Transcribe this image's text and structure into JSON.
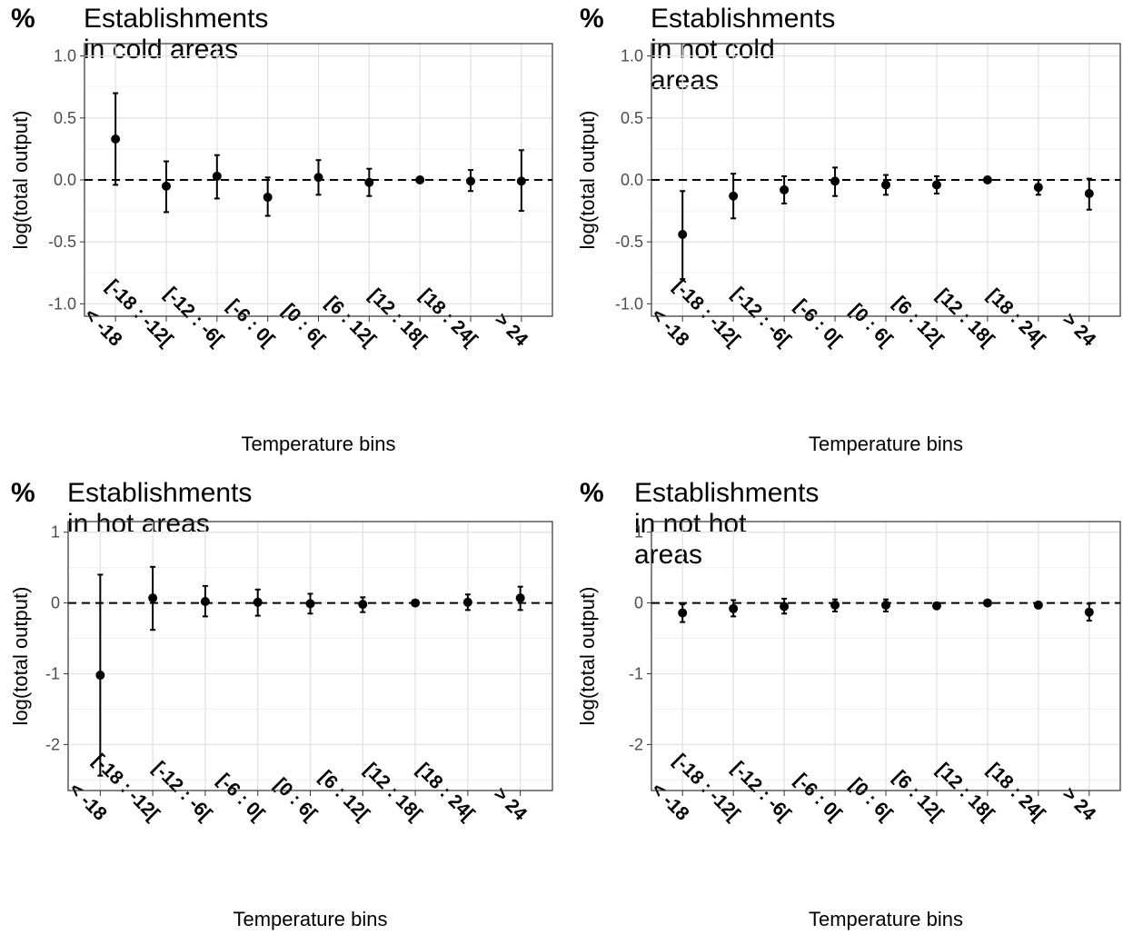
{
  "ylabel": "log(total output)",
  "xlabel": "Temperature bins",
  "chart_data": [
    {
      "type": "scatter",
      "title": "Establishments in cold areas",
      "title_prefix": "%",
      "xlabel": "Temperature bins",
      "ylabel": "log(total output)",
      "categories": [
        "< -18",
        "[-18 : -12[",
        "[-12 : -6[",
        "[-6 : 0[",
        "[0 : 6[",
        "[6 : 12[",
        "[12 : 18[",
        "[18 : 24[",
        "> 24"
      ],
      "values": [
        0.33,
        -0.05,
        0.03,
        -0.14,
        0.02,
        -0.02,
        0.0,
        -0.01,
        -0.01
      ],
      "ci_low": [
        -0.04,
        -0.26,
        -0.15,
        -0.29,
        -0.12,
        -0.13,
        0.0,
        -0.09,
        -0.25
      ],
      "ci_high": [
        0.7,
        0.15,
        0.2,
        0.02,
        0.16,
        0.09,
        0.0,
        0.08,
        0.24
      ],
      "yticks": [
        -1.0,
        -0.5,
        0.0,
        0.5,
        1.0
      ],
      "ytick_labels": [
        "-1.0",
        "-0.5",
        "0.0",
        "0.5",
        "1.0"
      ],
      "ylim": [
        -1.1,
        1.1
      ],
      "reference_line": 0,
      "grid": true
    },
    {
      "type": "scatter",
      "title": "Establishments in not cold areas",
      "title_prefix": "%",
      "xlabel": "Temperature bins",
      "ylabel": "log(total output)",
      "categories": [
        "< -18",
        "[-18 : -12[",
        "[-12 : -6[",
        "[-6 : 0[",
        "[0 : 6[",
        "[6 : 12[",
        "[12 : 18[",
        "[18 : 24[",
        "> 24"
      ],
      "values": [
        -0.44,
        -0.13,
        -0.08,
        -0.01,
        -0.04,
        -0.04,
        0.0,
        -0.06,
        -0.11
      ],
      "ci_low": [
        -0.8,
        -0.31,
        -0.19,
        -0.13,
        -0.12,
        -0.11,
        0.0,
        -0.12,
        -0.24
      ],
      "ci_high": [
        -0.09,
        0.05,
        0.03,
        0.1,
        0.04,
        0.03,
        0.0,
        0.0,
        0.01
      ],
      "yticks": [
        -1.0,
        -0.5,
        0.0,
        0.5,
        1.0
      ],
      "ytick_labels": [
        "-1.0",
        "-0.5",
        "0.0",
        "0.5",
        "1.0"
      ],
      "ylim": [
        -1.1,
        1.1
      ],
      "reference_line": 0,
      "grid": true
    },
    {
      "type": "scatter",
      "title": "Establishments in hot areas",
      "title_prefix": "%",
      "xlabel": "Temperature bins",
      "ylabel": "log(total output)",
      "categories": [
        "< -18",
        "[-18 : -12[",
        "[-12 : -6[",
        "[-6 : 0[",
        "[0 : 6[",
        "[6 : 12[",
        "[12 : 18[",
        "[18 : 24[",
        "> 24"
      ],
      "values": [
        -1.02,
        0.07,
        0.02,
        0.01,
        -0.01,
        -0.02,
        0.0,
        0.01,
        0.07
      ],
      "ci_low": [
        -2.44,
        -0.38,
        -0.19,
        -0.18,
        -0.15,
        -0.13,
        0.0,
        -0.1,
        -0.1
      ],
      "ci_high": [
        0.4,
        0.51,
        0.24,
        0.19,
        0.13,
        0.08,
        0.0,
        0.12,
        0.23
      ],
      "yticks": [
        -2,
        -1,
        0,
        1
      ],
      "ytick_labels": [
        "-2",
        "-1",
        "0",
        "1"
      ],
      "ylim": [
        -2.65,
        1.15
      ],
      "reference_line": 0,
      "grid": true
    },
    {
      "type": "scatter",
      "title": "Establishments in not hot areas",
      "title_prefix": "%",
      "xlabel": "Temperature bins",
      "ylabel": "log(total output)",
      "categories": [
        "< -18",
        "[-18 : -12[",
        "[-12 : -6[",
        "[-6 : 0[",
        "[0 : 6[",
        "[6 : 12[",
        "[12 : 18[",
        "[18 : 24[",
        "> 24"
      ],
      "values": [
        -0.14,
        -0.08,
        -0.05,
        -0.03,
        -0.03,
        -0.04,
        0.0,
        -0.03,
        -0.13
      ],
      "ci_low": [
        -0.27,
        -0.19,
        -0.15,
        -0.12,
        -0.12,
        -0.07,
        0.0,
        -0.06,
        -0.25
      ],
      "ci_high": [
        -0.02,
        0.04,
        0.06,
        0.05,
        0.05,
        -0.01,
        0.0,
        0.0,
        -0.01
      ],
      "yticks": [
        -2,
        -1,
        0,
        1
      ],
      "ytick_labels": [
        "-2",
        "-1",
        "0",
        "1"
      ],
      "ylim": [
        -2.65,
        1.15
      ],
      "reference_line": 0,
      "grid": true
    }
  ]
}
